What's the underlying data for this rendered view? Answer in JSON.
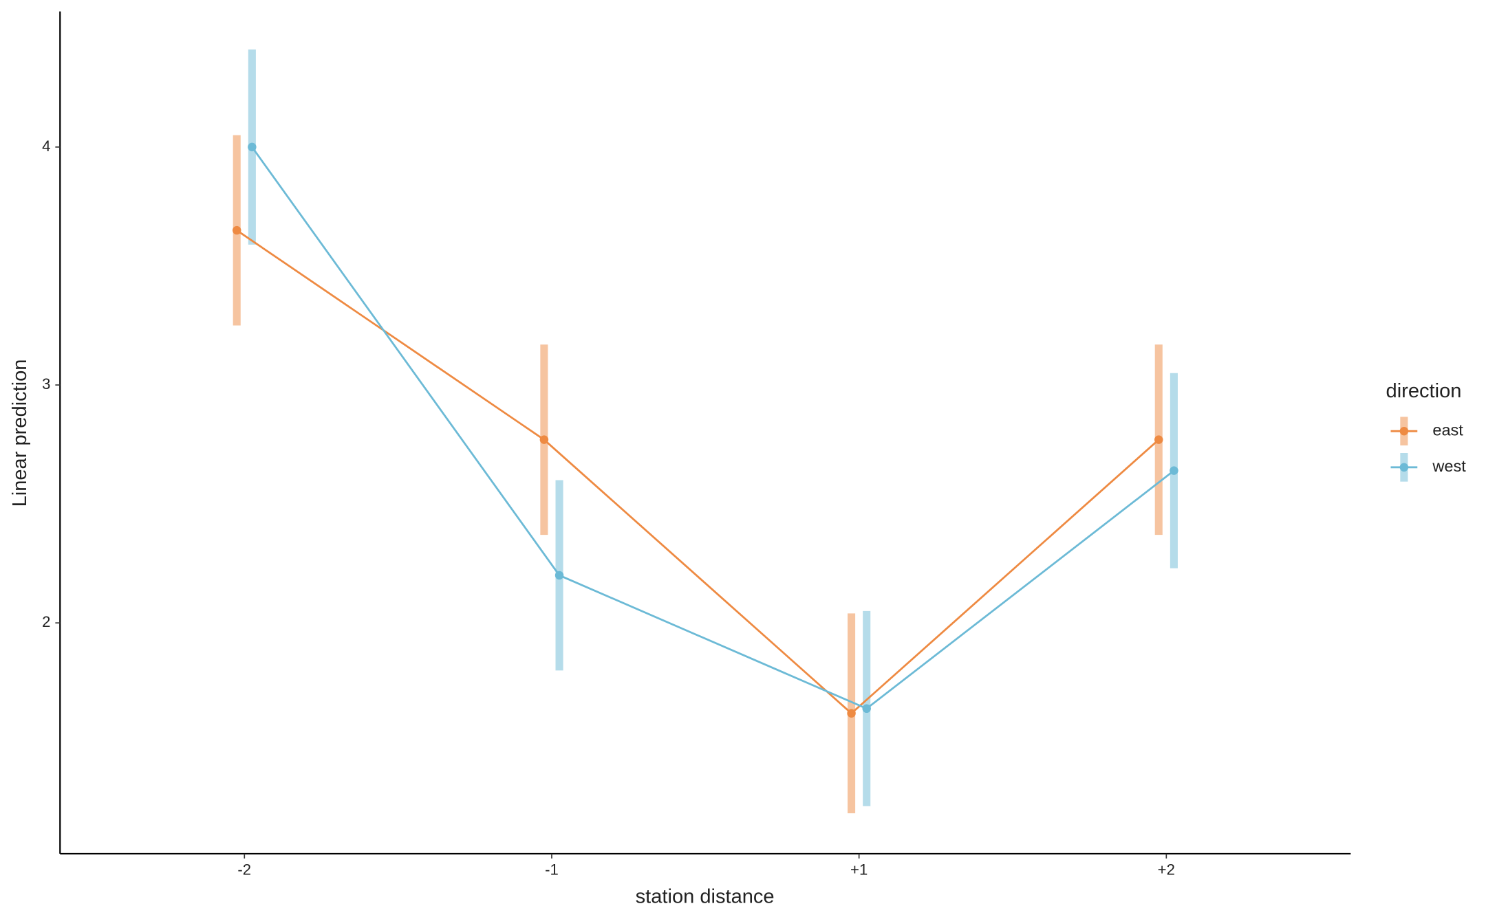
{
  "chart_data": {
    "type": "line",
    "x_label": "station distance",
    "y_label": "Linear prediction",
    "categories": [
      "-2",
      "-1",
      "+1",
      "+2"
    ],
    "ylim": [
      1.03,
      4.57
    ],
    "yticks": [
      2,
      3,
      4
    ],
    "legend_title": "direction",
    "legend_position": "right",
    "series": [
      {
        "name": "east",
        "color": "#ee8a42",
        "values": [
          3.65,
          2.77,
          1.62,
          2.77
        ],
        "errors": [
          0.4,
          0.4,
          0.42,
          0.4
        ]
      },
      {
        "name": "west",
        "color": "#6cbad6",
        "values": [
          4.0,
          2.2,
          1.64,
          2.64
        ],
        "errors": [
          0.41,
          0.4,
          0.41,
          0.41
        ]
      }
    ]
  }
}
